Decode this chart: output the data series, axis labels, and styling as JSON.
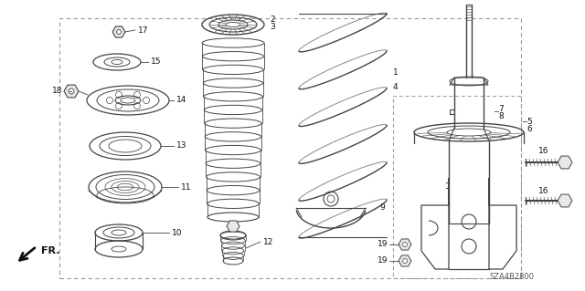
{
  "bg_color": "#ffffff",
  "line_color": "#444444",
  "border_color": "#999999",
  "diagram_id": "SZA4B2800",
  "figsize": [
    6.4,
    3.19
  ],
  "dpi": 100
}
